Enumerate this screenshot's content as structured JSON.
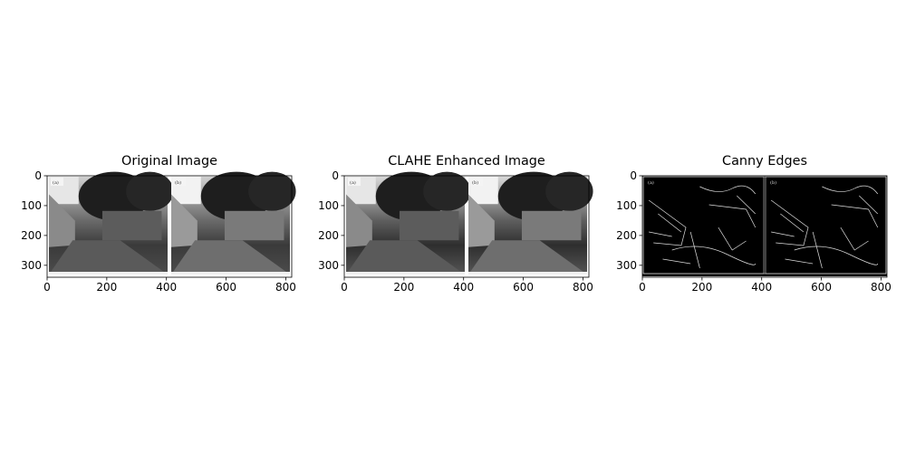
{
  "colors": {
    "frame": "#000000",
    "background": "#ffffff",
    "edges_background": "#000000",
    "edge_lines": "#dcdcdc"
  },
  "chart_data": [
    {
      "type": "image",
      "title": "Original Image",
      "xlabel": "",
      "ylabel": "",
      "xlim": [
        0,
        820
      ],
      "ylim": [
        340,
        0
      ],
      "xticks": [
        0,
        200,
        400,
        600,
        800
      ],
      "yticks": [
        0,
        100,
        200,
        300
      ],
      "content": "grayscale street scene, two side-by-side photos labeled (a) and (b)",
      "inset_labels": [
        "(a)",
        "(b)"
      ]
    },
    {
      "type": "image",
      "title": "CLAHE Enhanced Image",
      "xlabel": "",
      "ylabel": "",
      "xlim": [
        0,
        820
      ],
      "ylim": [
        340,
        0
      ],
      "xticks": [
        0,
        200,
        400,
        600,
        800
      ],
      "yticks": [
        0,
        100,
        200,
        300
      ],
      "content": "contrast-enhanced grayscale street scene, two side-by-side photos labeled (a) and (b)",
      "inset_labels": [
        "(a)",
        "(b)"
      ]
    },
    {
      "type": "image",
      "title": "Canny Edges",
      "xlabel": "",
      "ylabel": "",
      "xlim": [
        0,
        820
      ],
      "ylim": [
        340,
        0
      ],
      "xticks": [
        0,
        200,
        400,
        600,
        800
      ],
      "yticks": [
        0,
        100,
        200,
        300
      ],
      "content": "white edge lines on black background",
      "inset_labels": [
        "(a)",
        "(b)"
      ]
    }
  ]
}
